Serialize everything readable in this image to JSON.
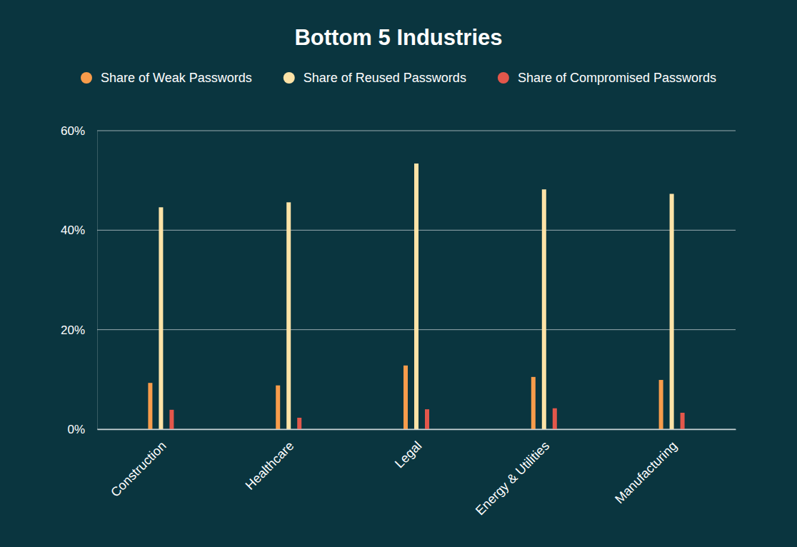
{
  "chart_data": {
    "type": "bar",
    "title": "Bottom 5 Industries",
    "categories": [
      "Construction",
      "Healthcare",
      "Legal",
      "Energy & Utilities",
      "Manufacturing"
    ],
    "series": [
      {
        "name": "Share of Weak Passwords",
        "color": "#f89c4b",
        "values": [
          9.3,
          8.8,
          12.8,
          10.5,
          9.9
        ]
      },
      {
        "name": "Share of Reused Passwords",
        "color": "#fde3a7",
        "values": [
          44.6,
          45.6,
          53.4,
          48.2,
          47.3
        ]
      },
      {
        "name": "Share of Compromised Passwords",
        "color": "#e3574b",
        "values": [
          3.9,
          2.3,
          4.0,
          4.2,
          3.3
        ]
      }
    ],
    "ylim": [
      0,
      60
    ],
    "yticks": [
      {
        "value": 0,
        "label": "0%"
      },
      {
        "value": 20,
        "label": "20%"
      },
      {
        "value": 40,
        "label": "40%"
      },
      {
        "value": 60,
        "label": "60%"
      }
    ],
    "grid": true,
    "legend": "top"
  }
}
